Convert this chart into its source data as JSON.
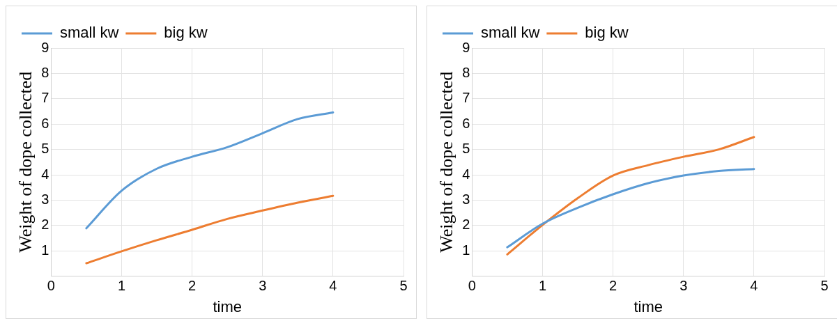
{
  "chart_data": [
    {
      "type": "line",
      "xlabel": "time",
      "ylabel": "Weight of dope collected",
      "xlim": [
        0,
        5
      ],
      "xticks": [
        0,
        1,
        2,
        3,
        4,
        5
      ],
      "ylim": [
        0,
        9
      ],
      "yticks": [
        1,
        2,
        3,
        4,
        5,
        6,
        7,
        8,
        9
      ],
      "grid": true,
      "legend": "top left",
      "x": [
        0.5,
        1,
        1.5,
        2,
        2.5,
        3,
        3.5,
        4
      ],
      "series": [
        {
          "name": "small kw",
          "color": "#5b9bd5",
          "values": [
            1.89,
            3.37,
            4.24,
            4.71,
            5.09,
            5.64,
            6.2,
            6.46
          ]
        },
        {
          "name": "big kw",
          "color": "#ed7d31",
          "values": [
            0.51,
            0.98,
            1.42,
            1.83,
            2.26,
            2.59,
            2.9,
            3.17
          ]
        }
      ]
    },
    {
      "type": "line",
      "xlabel": "time",
      "ylabel": "Weight of dope collected",
      "xlim": [
        0,
        5
      ],
      "xticks": [
        0,
        1,
        2,
        3,
        4,
        5
      ],
      "ylim": [
        0,
        9
      ],
      "yticks": [
        1,
        2,
        3,
        4,
        5,
        6,
        7,
        8,
        9
      ],
      "grid": true,
      "legend": "top left",
      "x": [
        0.5,
        1,
        1.5,
        2,
        2.5,
        3,
        3.5,
        4
      ],
      "series": [
        {
          "name": "small kw",
          "color": "#5b9bd5",
          "values": [
            1.14,
            2.07,
            2.7,
            3.23,
            3.67,
            3.97,
            4.15,
            4.23
          ]
        },
        {
          "name": "big kw",
          "color": "#ed7d31",
          "values": [
            0.86,
            2.02,
            3.08,
            3.97,
            4.38,
            4.71,
            5.0,
            5.49
          ]
        }
      ]
    }
  ]
}
